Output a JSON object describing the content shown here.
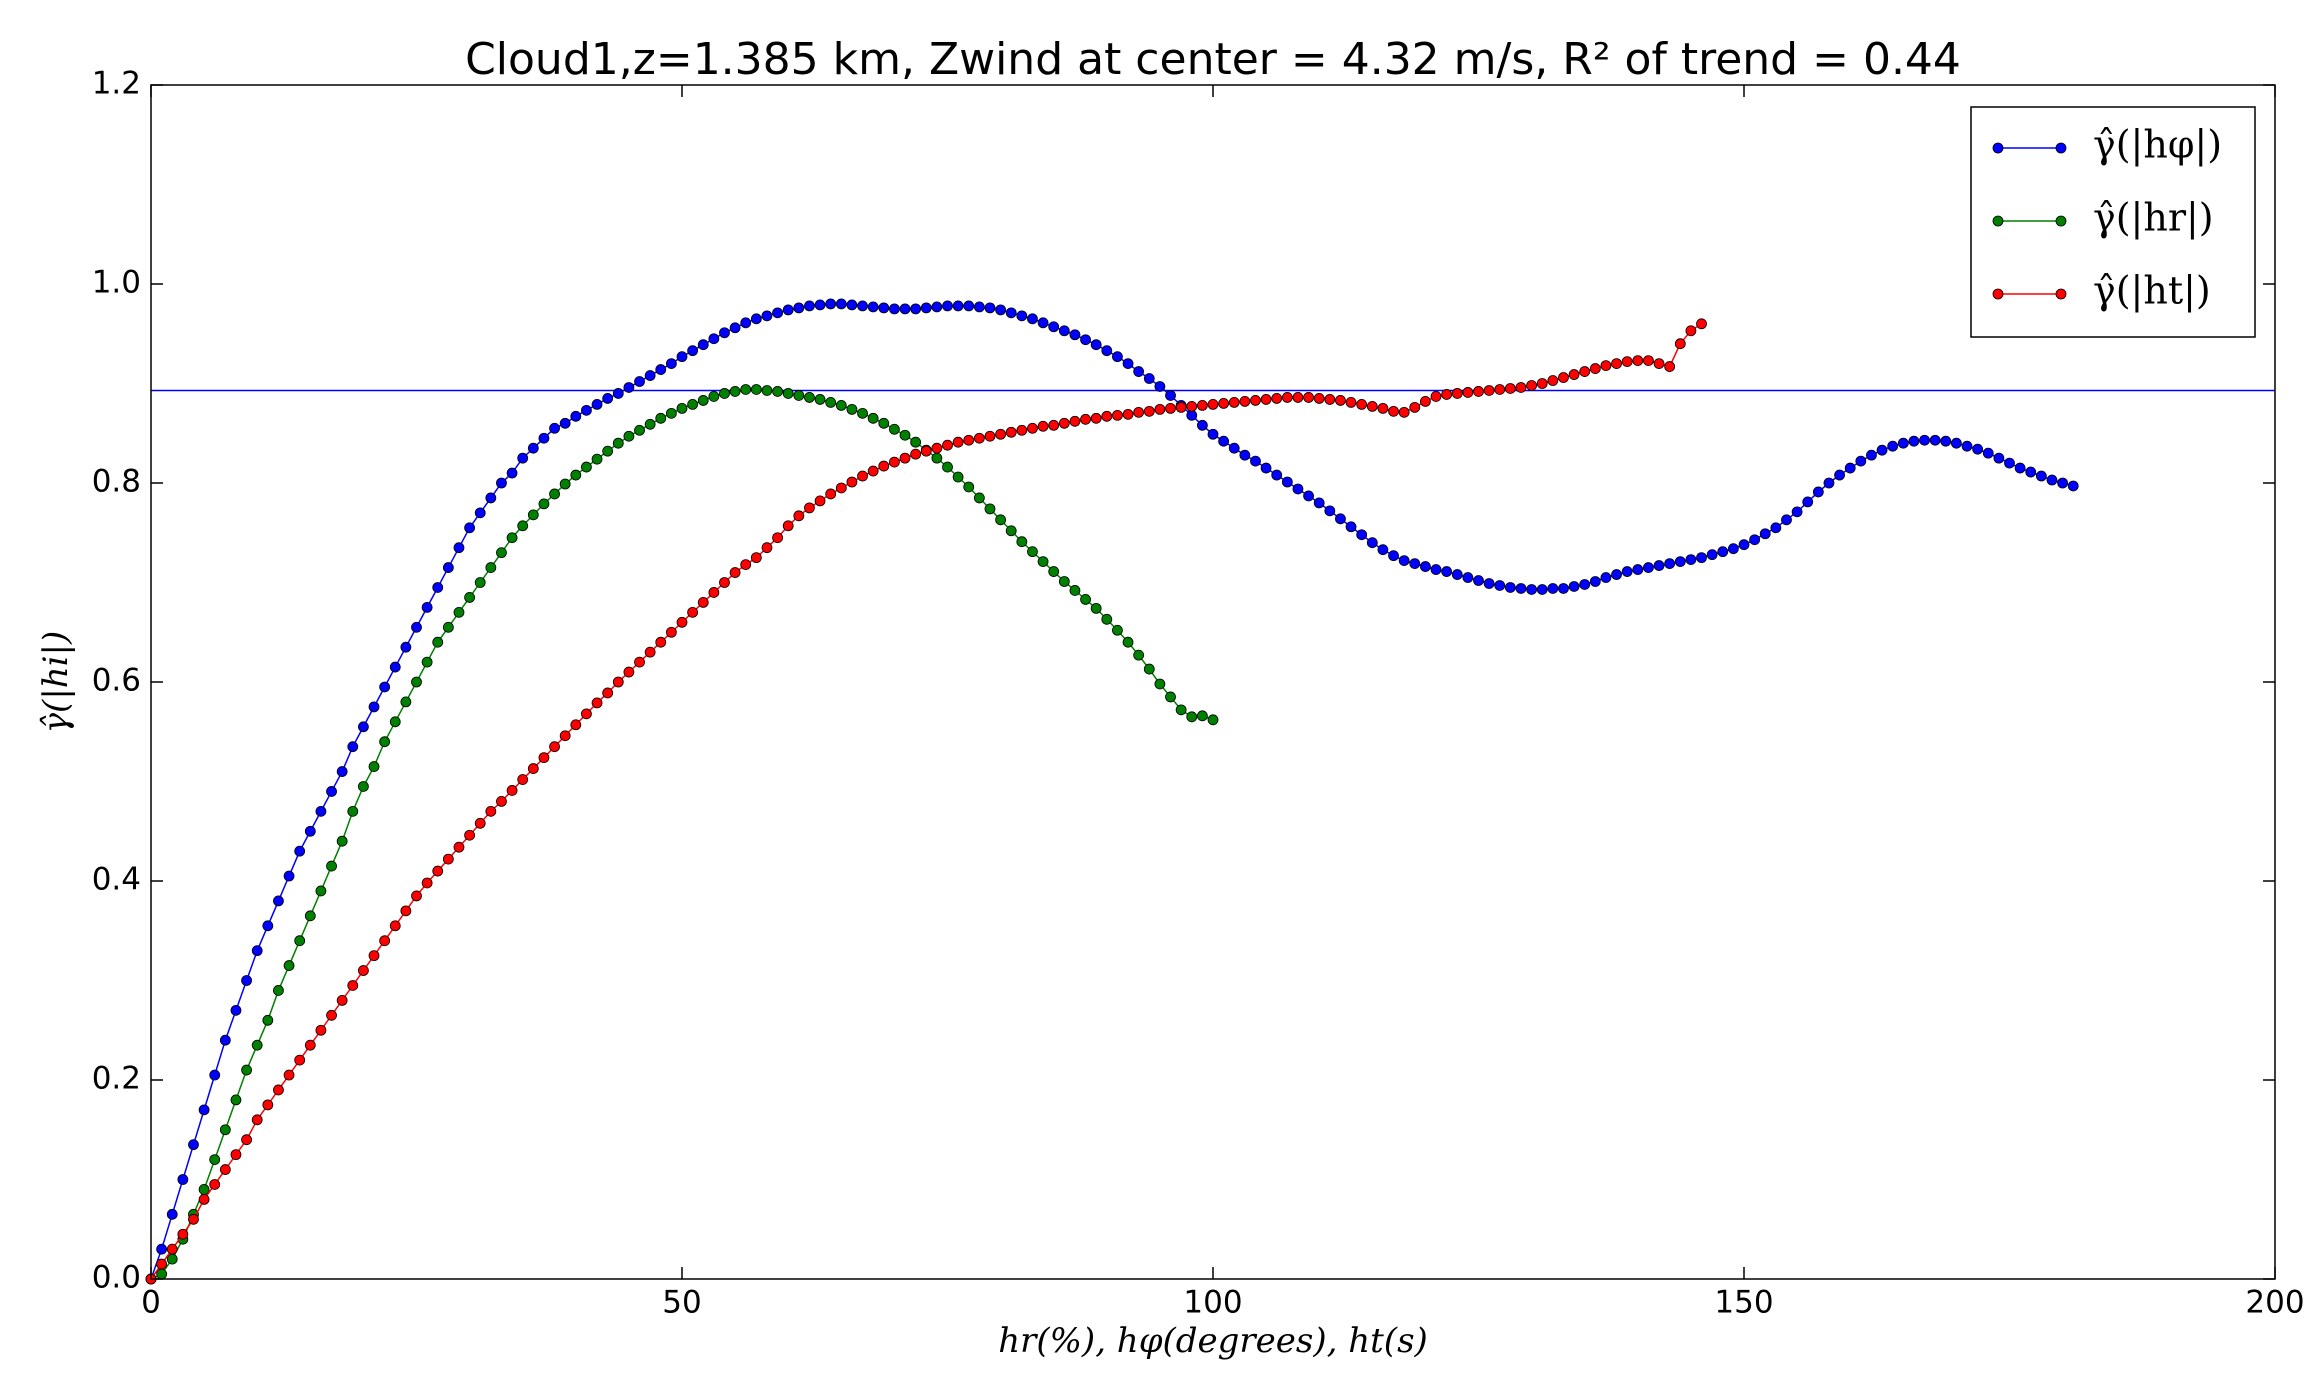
{
  "chart_data": {
    "type": "line",
    "title": "Cloud1,z=1.385 km, Zwind at center = 4.32 m/s, R² of trend = 0.44",
    "x_label": "hr(%), hφ(degrees), ht(s)",
    "y_label": "γ̂(|hi|)",
    "xlim": [
      0,
      200
    ],
    "ylim": [
      0,
      1.2
    ],
    "xticks": [
      0,
      50,
      100,
      150,
      200
    ],
    "yticks": [
      {
        "value": 0,
        "label": "0.0"
      },
      {
        "value": 0.2,
        "label": "0.2"
      },
      {
        "value": 0.4,
        "label": "0.4"
      },
      {
        "value": 0.6,
        "label": "0.6"
      },
      {
        "value": 0.8,
        "label": "0.8"
      },
      {
        "value": 1.0,
        "label": "1.0"
      },
      {
        "value": 1.2,
        "label": "1.2"
      }
    ],
    "legend": "upper right",
    "hline": {
      "value": 0.893,
      "color": "#0000ff"
    },
    "x": [
      0,
      1,
      2,
      3,
      4,
      5,
      6,
      7,
      8,
      9,
      10,
      11,
      12,
      13,
      14,
      15,
      16,
      17,
      18,
      19,
      20,
      21,
      22,
      23,
      24,
      25,
      26,
      27,
      28,
      29,
      30,
      31,
      32,
      33,
      34,
      35,
      36,
      37,
      38,
      39,
      40,
      41,
      42,
      43,
      44,
      45,
      46,
      47,
      48,
      49,
      50,
      51,
      52,
      53,
      54,
      55,
      56,
      57,
      58,
      59,
      60,
      61,
      62,
      63,
      64,
      65,
      66,
      67,
      68,
      69,
      70,
      71,
      72,
      73,
      74,
      75,
      76,
      77,
      78,
      79,
      80,
      81,
      82,
      83,
      84,
      85,
      86,
      87,
      88,
      89,
      90,
      91,
      92,
      93,
      94,
      95,
      96,
      97,
      98,
      99,
      100,
      101,
      102,
      103,
      104,
      105,
      106,
      107,
      108,
      109,
      110,
      111,
      112,
      113,
      114,
      115,
      116,
      117,
      118,
      119,
      120,
      121,
      122,
      123,
      124,
      125,
      126,
      127,
      128,
      129,
      130,
      131,
      132,
      133,
      134,
      135,
      136,
      137,
      138,
      139,
      140,
      141,
      142,
      143,
      144,
      145,
      146,
      147,
      148,
      149,
      150,
      151,
      152,
      153,
      154,
      155,
      156,
      157,
      158,
      159,
      160,
      161,
      162,
      163,
      164,
      165,
      166,
      167,
      168,
      169,
      170,
      171,
      172,
      173,
      174,
      175,
      176,
      177,
      178,
      179,
      180,
      181
    ],
    "series": [
      {
        "name": "γ̂(|hφ|)",
        "color": "#0000ff",
        "values": [
          0,
          0.03,
          0.065,
          0.1,
          0.135,
          0.17,
          0.205,
          0.24,
          0.27,
          0.3,
          0.33,
          0.355,
          0.38,
          0.405,
          0.43,
          0.45,
          0.47,
          0.49,
          0.51,
          0.535,
          0.555,
          0.575,
          0.595,
          0.615,
          0.635,
          0.655,
          0.675,
          0.695,
          0.715,
          0.735,
          0.755,
          0.77,
          0.785,
          0.8,
          0.81,
          0.825,
          0.835,
          0.845,
          0.855,
          0.86,
          0.867,
          0.873,
          0.879,
          0.885,
          0.89,
          0.896,
          0.902,
          0.908,
          0.914,
          0.92,
          0.927,
          0.933,
          0.939,
          0.945,
          0.951,
          0.956,
          0.961,
          0.965,
          0.968,
          0.971,
          0.974,
          0.976,
          0.978,
          0.979,
          0.98,
          0.98,
          0.979,
          0.978,
          0.977,
          0.976,
          0.975,
          0.975,
          0.975,
          0.976,
          0.977,
          0.978,
          0.978,
          0.978,
          0.977,
          0.976,
          0.974,
          0.971,
          0.968,
          0.965,
          0.961,
          0.957,
          0.953,
          0.949,
          0.944,
          0.939,
          0.933,
          0.927,
          0.92,
          0.912,
          0.905,
          0.897,
          0.888,
          0.878,
          0.868,
          0.858,
          0.849,
          0.842,
          0.835,
          0.828,
          0.822,
          0.815,
          0.808,
          0.801,
          0.794,
          0.787,
          0.78,
          0.772,
          0.764,
          0.756,
          0.748,
          0.74,
          0.733,
          0.727,
          0.722,
          0.719,
          0.716,
          0.713,
          0.711,
          0.708,
          0.705,
          0.702,
          0.699,
          0.697,
          0.695,
          0.694,
          0.693,
          0.693,
          0.694,
          0.694,
          0.696,
          0.698,
          0.701,
          0.705,
          0.708,
          0.711,
          0.713,
          0.715,
          0.717,
          0.719,
          0.721,
          0.723,
          0.725,
          0.728,
          0.731,
          0.734,
          0.738,
          0.743,
          0.749,
          0.755,
          0.763,
          0.771,
          0.781,
          0.791,
          0.8,
          0.808,
          0.815,
          0.822,
          0.828,
          0.833,
          0.837,
          0.84,
          0.842,
          0.843,
          0.843,
          0.842,
          0.84,
          0.837,
          0.834,
          0.83,
          0.825,
          0.82,
          0.815,
          0.811,
          0.807,
          0.803,
          0.8,
          0.797
        ]
      },
      {
        "name": "γ̂(|hr|)",
        "color": "#008000",
        "values": [
          0,
          0.005,
          0.02,
          0.04,
          0.065,
          0.09,
          0.12,
          0.15,
          0.18,
          0.21,
          0.235,
          0.26,
          0.29,
          0.315,
          0.34,
          0.365,
          0.39,
          0.415,
          0.44,
          0.47,
          0.495,
          0.515,
          0.54,
          0.56,
          0.58,
          0.6,
          0.62,
          0.64,
          0.655,
          0.67,
          0.685,
          0.7,
          0.715,
          0.73,
          0.745,
          0.757,
          0.768,
          0.779,
          0.789,
          0.799,
          0.808,
          0.816,
          0.824,
          0.832,
          0.84,
          0.847,
          0.853,
          0.859,
          0.865,
          0.87,
          0.875,
          0.879,
          0.883,
          0.887,
          0.89,
          0.892,
          0.894,
          0.894,
          0.893,
          0.892,
          0.89,
          0.888,
          0.886,
          0.884,
          0.881,
          0.878,
          0.874,
          0.87,
          0.865,
          0.86,
          0.854,
          0.848,
          0.841,
          0.833,
          0.825,
          0.816,
          0.806,
          0.796,
          0.785,
          0.774,
          0.763,
          0.752,
          0.741,
          0.731,
          0.721,
          0.711,
          0.701,
          0.692,
          0.683,
          0.674,
          0.663,
          0.652,
          0.64,
          0.627,
          0.613,
          0.598,
          0.585,
          0.572,
          0.565,
          0.566,
          0.562,
          null,
          null,
          null,
          null,
          null,
          null,
          null,
          null,
          null,
          null,
          null,
          null,
          null,
          null,
          null,
          null,
          null,
          null,
          null,
          null,
          null,
          null,
          null,
          null,
          null,
          null,
          null,
          null,
          null,
          null,
          null,
          null,
          null,
          null,
          null,
          null,
          null,
          null,
          null,
          null,
          null,
          null,
          null,
          null,
          null,
          null,
          null,
          null,
          null,
          null,
          null,
          null,
          null,
          null,
          null,
          null,
          null,
          null,
          null,
          null,
          null,
          null,
          null,
          null,
          null,
          null,
          null,
          null,
          null,
          null,
          null,
          null,
          null,
          null,
          null,
          null,
          null,
          null,
          null,
          null,
          null
        ]
      },
      {
        "name": "γ̂(|ht|)",
        "color": "#ff0000",
        "values": [
          0,
          0.015,
          0.03,
          0.045,
          0.06,
          0.08,
          0.095,
          0.11,
          0.125,
          0.14,
          0.16,
          0.175,
          0.19,
          0.205,
          0.22,
          0.235,
          0.25,
          0.265,
          0.28,
          0.295,
          0.31,
          0.325,
          0.34,
          0.355,
          0.37,
          0.385,
          0.398,
          0.41,
          0.422,
          0.434,
          0.446,
          0.458,
          0.47,
          0.48,
          0.491,
          0.502,
          0.513,
          0.524,
          0.535,
          0.546,
          0.557,
          0.568,
          0.579,
          0.589,
          0.6,
          0.61,
          0.62,
          0.63,
          0.64,
          0.65,
          0.66,
          0.67,
          0.68,
          0.69,
          0.7,
          0.71,
          0.718,
          0.725,
          0.735,
          0.745,
          0.757,
          0.767,
          0.775,
          0.782,
          0.789,
          0.795,
          0.801,
          0.807,
          0.812,
          0.817,
          0.821,
          0.825,
          0.829,
          0.832,
          0.835,
          0.838,
          0.841,
          0.843,
          0.845,
          0.847,
          0.849,
          0.851,
          0.853,
          0.855,
          0.857,
          0.858,
          0.86,
          0.862,
          0.864,
          0.865,
          0.867,
          0.868,
          0.869,
          0.871,
          0.872,
          0.874,
          0.875,
          0.876,
          0.877,
          0.878,
          0.879,
          0.88,
          0.881,
          0.882,
          0.883,
          0.884,
          0.885,
          0.886,
          0.886,
          0.886,
          0.885,
          0.884,
          0.883,
          0.881,
          0.879,
          0.877,
          0.875,
          0.872,
          0.871,
          0.876,
          0.882,
          0.887,
          0.889,
          0.89,
          0.891,
          0.892,
          0.893,
          0.894,
          0.895,
          0.896,
          0.898,
          0.9,
          0.903,
          0.906,
          0.909,
          0.912,
          0.915,
          0.918,
          0.92,
          0.922,
          0.923,
          0.923,
          0.92,
          0.917,
          0.94,
          0.953,
          0.96,
          null,
          null,
          null,
          null,
          null,
          null,
          null,
          null,
          null,
          null,
          null,
          null,
          null,
          null,
          null,
          null,
          null,
          null,
          null,
          null,
          null,
          null,
          null,
          null,
          null,
          null,
          null,
          null,
          null,
          null,
          null,
          null,
          null,
          null,
          null
        ]
      }
    ]
  }
}
